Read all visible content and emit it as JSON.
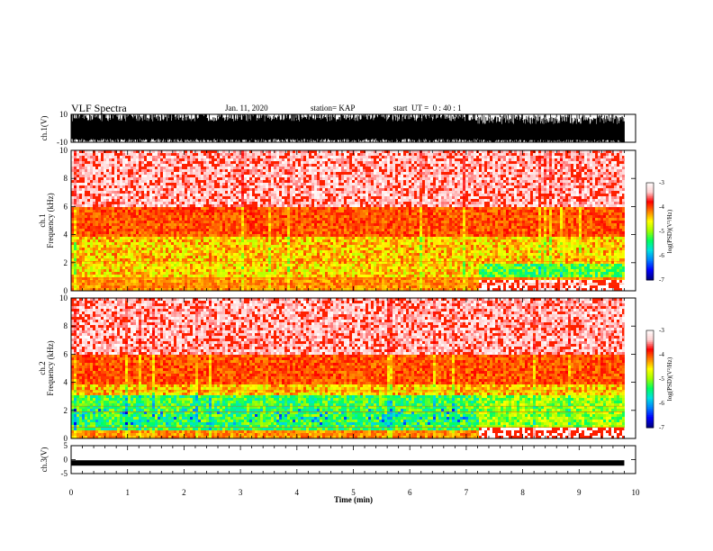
{
  "header": {
    "title": "VLF Spectra",
    "date": "Jan. 11, 2020",
    "station": "station= KAP",
    "start": "start  UT =  0 : 40 : 1"
  },
  "colors": {
    "colormap": [
      "#000080",
      "#0000ff",
      "#0080ff",
      "#00e0e0",
      "#00ff60",
      "#a0ff00",
      "#ffff00",
      "#ff8000",
      "#ff0000",
      "#ffd0d0",
      "#ffffff"
    ],
    "waveform": "#000000"
  },
  "chart_data": [
    {
      "type": "line",
      "name": "ch1-waveform",
      "ylabel": "ch.1(V)",
      "ylim": [
        -10,
        10
      ],
      "yticks": [
        "10",
        "-10"
      ],
      "x": [
        0,
        7.2,
        8.8,
        9.8
      ],
      "series": [
        {
          "values": [
            6,
            6,
            8,
            5
          ]
        }
      ]
    },
    {
      "type": "heatmap",
      "name": "ch1-spectrogram",
      "ylabel": "ch.1\nFrequency  (kHz)",
      "ylim": [
        0,
        10
      ],
      "yticks": [
        "0",
        "2",
        "4",
        "6",
        "8",
        "10"
      ],
      "xlim": [
        0,
        9.8
      ],
      "colorbar": {
        "label": "log(PSD)(V²/Hz)",
        "range": [
          -7,
          -3
        ],
        "ticks": [
          "-3",
          "-4",
          "-5",
          "-6",
          "-7"
        ]
      },
      "time_change_min": 7.2,
      "green_band_khz": [
        1,
        2
      ],
      "green_level": [
        -4.5,
        -5.2
      ]
    },
    {
      "type": "heatmap",
      "name": "ch2-spectrogram",
      "ylabel": "ch.2\nFrequency  (kHz)",
      "ylim": [
        0,
        10
      ],
      "yticks": [
        "0",
        "2",
        "4",
        "6",
        "8",
        "10"
      ],
      "xlim": [
        0,
        9.8
      ],
      "colorbar": {
        "label": "log(PSD)(V²/Hz)",
        "range": [
          -7,
          -3
        ],
        "ticks": [
          "-3",
          "-4",
          "-5",
          "-6",
          "-7"
        ]
      },
      "time_change_min": 7.2,
      "green_band_khz": [
        0.6,
        3.2
      ],
      "green_level": [
        -5.3,
        -5.0
      ]
    },
    {
      "type": "line",
      "name": "ch3-waveform",
      "ylabel": "ch.3(V)",
      "ylim": [
        -5,
        5
      ],
      "yticks": [
        "5",
        "0",
        "-5"
      ],
      "x": [
        0,
        9.8
      ],
      "series": [
        {
          "values": [
            -1.2,
            -1.2
          ]
        }
      ]
    }
  ],
  "x_axis": {
    "label": "Time  (min)",
    "range": [
      0,
      10
    ],
    "ticks": [
      "0",
      "1",
      "2",
      "3",
      "4",
      "5",
      "6",
      "7",
      "8",
      "9",
      "10"
    ]
  }
}
